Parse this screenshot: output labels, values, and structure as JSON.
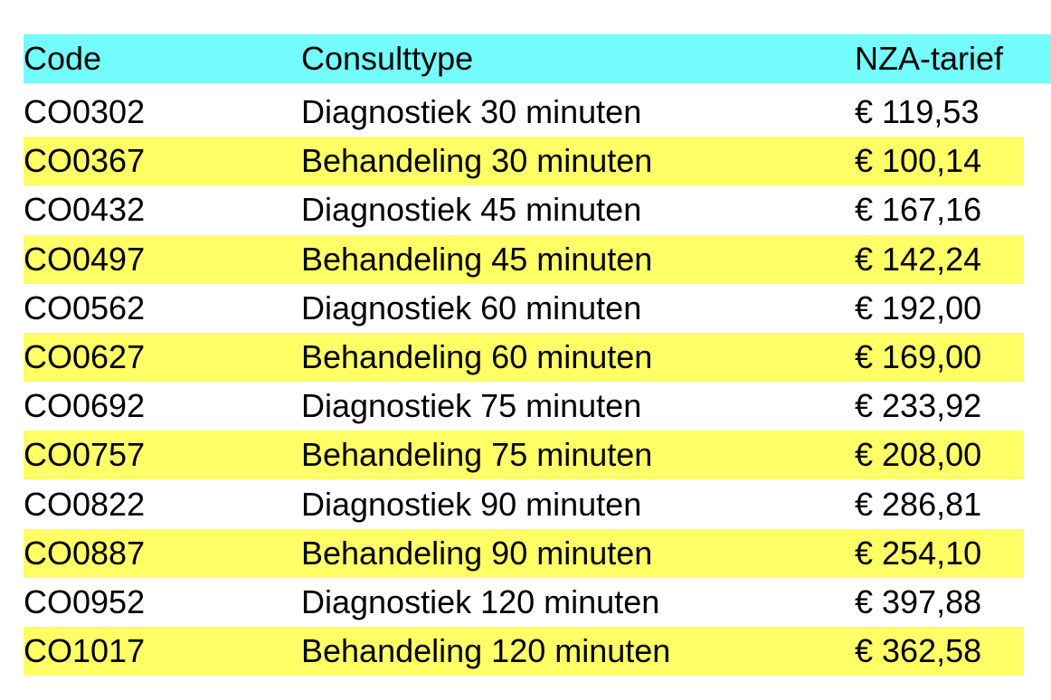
{
  "table": {
    "header": [
      "Code",
      "Consulttype",
      "NZA-tarief"
    ],
    "rows": [
      [
        "CO0302",
        "Diagnostiek 30 minuten",
        "€ 119,53"
      ],
      [
        "CO0367",
        "Behandeling 30 minuten",
        "€ 100,14"
      ],
      [
        "CO0432",
        "Diagnostiek 45 minuten",
        "€ 167,16"
      ],
      [
        "CO0497",
        "Behandeling 45 minuten",
        "€ 142,24"
      ],
      [
        "CO0562",
        "Diagnostiek 60 minuten",
        "€ 192,00"
      ],
      [
        "CO0627",
        "Behandeling 60 minuten",
        "€ 169,00"
      ],
      [
        "CO0692",
        "Diagnostiek 75 minuten",
        "€ 233,92"
      ],
      [
        "CO0757",
        "Behandeling 75 minuten",
        "€ 208,00"
      ],
      [
        "CO0822",
        "Diagnostiek 90 minuten",
        "€ 286,81"
      ],
      [
        "CO0887",
        "Behandeling 90 minuten",
        "€ 254,10"
      ],
      [
        "CO0952",
        "Diagnostiek 120 minuten",
        "€ 397,88"
      ],
      [
        "CO1017",
        "Behandeling 120 minuten",
        "€ 362,58"
      ]
    ]
  }
}
